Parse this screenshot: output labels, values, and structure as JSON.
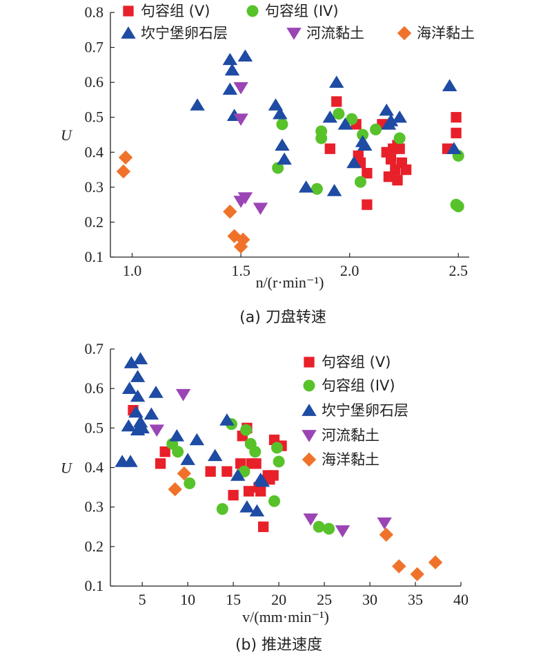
{
  "chart_data": [
    {
      "type": "scatter",
      "caption": "(a) 刀盘转速",
      "xlabel": "n/(r·min⁻¹)",
      "ylabel": "U",
      "xlim": [
        0.9,
        2.55
      ],
      "ylim": [
        0.1,
        0.8
      ],
      "xticks": [
        "1.0",
        "1.5",
        "2.0",
        "2.5"
      ],
      "yticks": [
        "0.1",
        "0.2",
        "0.3",
        "0.4",
        "0.5",
        "0.6",
        "0.7",
        "0.8"
      ],
      "legend": "top",
      "series": [
        {
          "name": "句容组 (V)",
          "marker": "square",
          "color": "#e8202a",
          "x": [
            1.94,
            1.91,
            2.03,
            2.04,
            2.05,
            2.08,
            2.08,
            2.15,
            2.17,
            2.18,
            2.19,
            2.2,
            2.21,
            2.22,
            2.22,
            2.23,
            2.24,
            2.26,
            2.45,
            2.49,
            2.49
          ],
          "y": [
            0.545,
            0.41,
            0.48,
            0.39,
            0.37,
            0.34,
            0.25,
            0.48,
            0.4,
            0.33,
            0.38,
            0.41,
            0.35,
            0.42,
            0.32,
            0.41,
            0.37,
            0.35,
            0.41,
            0.5,
            0.455
          ]
        },
        {
          "name": "句容组 (IV)",
          "marker": "circle",
          "color": "#58c22a",
          "x": [
            1.67,
            1.69,
            1.85,
            1.87,
            1.87,
            1.95,
            2.01,
            2.05,
            2.06,
            2.12,
            2.23,
            2.49,
            2.5,
            2.5
          ],
          "y": [
            0.355,
            0.48,
            0.295,
            0.46,
            0.44,
            0.51,
            0.495,
            0.315,
            0.45,
            0.465,
            0.44,
            0.25,
            0.245,
            0.39
          ]
        },
        {
          "name": "坎宁堡卵石层",
          "marker": "triangle-up",
          "color": "#1e4ba3",
          "x": [
            1.3,
            1.45,
            1.46,
            1.45,
            1.47,
            1.52,
            1.66,
            1.68,
            1.69,
            1.7,
            1.8,
            1.91,
            1.93,
            1.94,
            1.98,
            2.02,
            2.06,
            2.07,
            2.17,
            2.18,
            2.19,
            2.23,
            2.46,
            2.48
          ],
          "y": [
            0.535,
            0.665,
            0.635,
            0.58,
            0.505,
            0.675,
            0.535,
            0.51,
            0.42,
            0.38,
            0.3,
            0.5,
            0.29,
            0.6,
            0.48,
            0.37,
            0.43,
            0.42,
            0.52,
            0.48,
            0.49,
            0.5,
            0.59,
            0.41
          ]
        },
        {
          "name": "河流黏土",
          "marker": "triangle-down",
          "color": "#9b45b5",
          "x": [
            1.5,
            1.5,
            1.52,
            1.5,
            1.59
          ],
          "y": [
            0.585,
            0.495,
            0.27,
            0.26,
            0.24
          ]
        },
        {
          "name": "海洋黏土",
          "marker": "diamond",
          "color": "#f0722a",
          "x": [
            0.97,
            0.96,
            1.45,
            1.47,
            1.51,
            1.5
          ],
          "y": [
            0.385,
            0.345,
            0.23,
            0.16,
            0.15,
            0.13
          ]
        }
      ]
    },
    {
      "type": "scatter",
      "caption": "(b) 推进速度",
      "xlabel": "v/(mm·min⁻¹)",
      "ylabel": "U",
      "xlim": [
        1.5,
        40
      ],
      "ylim": [
        0.1,
        0.7
      ],
      "xticks": [
        "5",
        "10",
        "15",
        "20",
        "25",
        "30",
        "35",
        "40"
      ],
      "yticks": [
        "0.1",
        "0.2",
        "0.3",
        "0.4",
        "0.5",
        "0.6",
        "0.7"
      ],
      "legend": "top-right",
      "series": [
        {
          "name": "句容组 (V)",
          "marker": "square",
          "color": "#e8202a",
          "x": [
            4.0,
            7.0,
            7.5,
            12.5,
            14.3,
            15.0,
            15.8,
            16.0,
            16.5,
            16.7,
            17.0,
            17.5,
            17.8,
            18.0,
            18.3,
            18.8,
            19.0,
            19.4,
            19.5,
            20.3
          ],
          "y": [
            0.545,
            0.41,
            0.44,
            0.39,
            0.39,
            0.33,
            0.41,
            0.48,
            0.5,
            0.34,
            0.41,
            0.41,
            0.35,
            0.34,
            0.25,
            0.38,
            0.37,
            0.38,
            0.47,
            0.455
          ]
        },
        {
          "name": "句容组 (IV)",
          "marker": "circle",
          "color": "#58c22a",
          "x": [
            8.3,
            8.9,
            10.2,
            13.8,
            14.8,
            16.2,
            16.4,
            16.9,
            17.4,
            19.5,
            19.8,
            20.0,
            24.4,
            25.5
          ],
          "y": [
            0.46,
            0.44,
            0.36,
            0.295,
            0.51,
            0.39,
            0.495,
            0.46,
            0.44,
            0.315,
            0.45,
            0.415,
            0.25,
            0.245
          ]
        },
        {
          "name": "坎宁堡卵石层",
          "marker": "triangle-up",
          "color": "#1e4ba3",
          "x": [
            2.8,
            3.5,
            3.6,
            3.8,
            3.7,
            4.3,
            4.5,
            4.5,
            4.8,
            4.8,
            4.5,
            5.0,
            6.0,
            6.5,
            8.8,
            10.0,
            11.0,
            13.0,
            14.3,
            15.5,
            16.5,
            17.6,
            18.2,
            18.0
          ],
          "y": [
            0.415,
            0.505,
            0.6,
            0.665,
            0.415,
            0.54,
            0.58,
            0.63,
            0.675,
            0.515,
            0.495,
            0.5,
            0.535,
            0.59,
            0.48,
            0.42,
            0.47,
            0.43,
            0.52,
            0.38,
            0.3,
            0.29,
            0.365,
            0.37
          ]
        },
        {
          "name": "河流黏土",
          "marker": "triangle-down",
          "color": "#9b45b5",
          "x": [
            6.6,
            9.5,
            23.5,
            27.0,
            31.6
          ],
          "y": [
            0.495,
            0.585,
            0.27,
            0.24,
            0.26
          ]
        },
        {
          "name": "海洋黏土",
          "marker": "diamond",
          "color": "#f0722a",
          "x": [
            8.6,
            9.6,
            31.8,
            33.2,
            35.2,
            37.2
          ],
          "y": [
            0.345,
            0.385,
            0.23,
            0.15,
            0.13,
            0.16
          ]
        }
      ]
    }
  ]
}
